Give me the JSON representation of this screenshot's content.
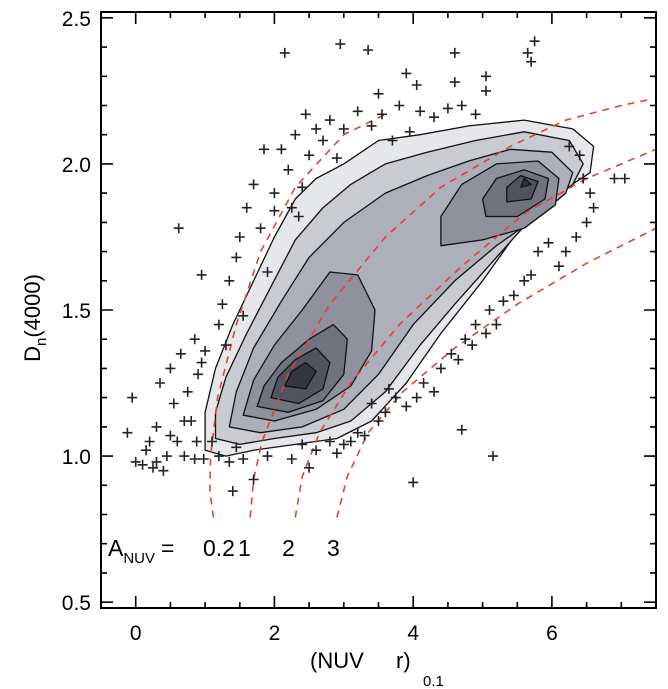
{
  "chart_data": {
    "type": "scatter",
    "xlabel": {
      "main": "(NUV",
      "gap": "r)",
      "sub": "0.1"
    },
    "ylabel": {
      "main": "D",
      "sub": "n",
      "tail": "(4000)"
    },
    "xlim": [
      -0.5,
      7.5
    ],
    "ylim": [
      0.48,
      2.52
    ],
    "x_ticks": [
      0,
      2,
      4,
      6
    ],
    "x_tick_labels": [
      "0",
      "2",
      "4",
      "6"
    ],
    "y_ticks": [
      0.5,
      1.0,
      1.5,
      2.0,
      2.5
    ],
    "y_tick_labels": [
      "0.5",
      "1.0",
      "1.5",
      "2.0",
      "2.5"
    ],
    "grid": false,
    "legend": "none",
    "contours": [
      {
        "level": 1,
        "fill": "#e6e7ea",
        "points": [
          [
            1.0,
            1.02
          ],
          [
            1.3,
            1.0
          ],
          [
            1.7,
            1.02
          ],
          [
            2.3,
            1.04
          ],
          [
            2.9,
            1.06
          ],
          [
            3.4,
            1.12
          ],
          [
            3.9,
            1.25
          ],
          [
            4.4,
            1.42
          ],
          [
            5.0,
            1.6
          ],
          [
            5.6,
            1.8
          ],
          [
            6.1,
            1.9
          ],
          [
            6.55,
            1.97
          ],
          [
            6.6,
            2.06
          ],
          [
            6.3,
            2.12
          ],
          [
            5.6,
            2.15
          ],
          [
            4.8,
            2.13
          ],
          [
            4.1,
            2.1
          ],
          [
            3.5,
            2.08
          ],
          [
            3.0,
            2.0
          ],
          [
            2.6,
            1.95
          ],
          [
            2.3,
            1.88
          ],
          [
            2.0,
            1.75
          ],
          [
            1.7,
            1.6
          ],
          [
            1.4,
            1.45
          ],
          [
            1.15,
            1.3
          ],
          [
            1.0,
            1.15
          ]
        ]
      },
      {
        "level": 2,
        "fill": "#c9cbd1",
        "points": [
          [
            1.15,
            1.06
          ],
          [
            1.5,
            1.04
          ],
          [
            2.0,
            1.06
          ],
          [
            2.6,
            1.08
          ],
          [
            3.1,
            1.12
          ],
          [
            3.6,
            1.22
          ],
          [
            4.1,
            1.38
          ],
          [
            4.6,
            1.52
          ],
          [
            5.2,
            1.68
          ],
          [
            5.8,
            1.84
          ],
          [
            6.3,
            1.93
          ],
          [
            6.45,
            2.0
          ],
          [
            6.25,
            2.08
          ],
          [
            5.6,
            2.11
          ],
          [
            4.9,
            2.08
          ],
          [
            4.2,
            2.04
          ],
          [
            3.6,
            2.0
          ],
          [
            3.1,
            1.93
          ],
          [
            2.7,
            1.85
          ],
          [
            2.3,
            1.74
          ],
          [
            1.95,
            1.58
          ],
          [
            1.6,
            1.42
          ],
          [
            1.3,
            1.27
          ],
          [
            1.15,
            1.15
          ]
        ]
      },
      {
        "level": 3,
        "fill": "#adb0b9",
        "points": [
          [
            1.35,
            1.1
          ],
          [
            1.8,
            1.08
          ],
          [
            2.4,
            1.1
          ],
          [
            3.0,
            1.16
          ],
          [
            3.5,
            1.28
          ],
          [
            4.0,
            1.45
          ],
          [
            4.6,
            1.6
          ],
          [
            5.2,
            1.72
          ],
          [
            5.8,
            1.82
          ],
          [
            6.2,
            1.9
          ],
          [
            6.3,
            1.97
          ],
          [
            6.0,
            2.04
          ],
          [
            5.4,
            2.05
          ],
          [
            4.8,
            2.01
          ],
          [
            4.2,
            1.96
          ],
          [
            3.6,
            1.9
          ],
          [
            3.0,
            1.8
          ],
          [
            2.5,
            1.68
          ],
          [
            2.1,
            1.53
          ],
          [
            1.7,
            1.37
          ],
          [
            1.45,
            1.22
          ]
        ]
      },
      {
        "level": 4,
        "fill": "#8f929d",
        "points": [
          [
            1.55,
            1.14
          ],
          [
            2.0,
            1.12
          ],
          [
            2.6,
            1.16
          ],
          [
            3.1,
            1.24
          ],
          [
            3.4,
            1.36
          ],
          [
            3.45,
            1.5
          ],
          [
            3.2,
            1.62
          ],
          [
            2.8,
            1.63
          ],
          [
            2.4,
            1.5
          ],
          [
            2.0,
            1.38
          ],
          [
            1.7,
            1.26
          ]
        ]
      },
      {
        "level": 4,
        "fill": "#8f929d",
        "points": [
          [
            4.4,
            1.72
          ],
          [
            5.0,
            1.74
          ],
          [
            5.6,
            1.78
          ],
          [
            6.05,
            1.86
          ],
          [
            6.1,
            1.95
          ],
          [
            5.8,
            2.01
          ],
          [
            5.2,
            2.0
          ],
          [
            4.7,
            1.93
          ],
          [
            4.4,
            1.82
          ]
        ]
      },
      {
        "level": 5,
        "fill": "#6f737e",
        "points": [
          [
            1.75,
            1.17
          ],
          [
            2.2,
            1.15
          ],
          [
            2.7,
            1.19
          ],
          [
            3.0,
            1.28
          ],
          [
            3.05,
            1.4
          ],
          [
            2.85,
            1.45
          ],
          [
            2.5,
            1.4
          ],
          [
            2.1,
            1.32
          ],
          [
            1.85,
            1.24
          ]
        ]
      },
      {
        "level": 5,
        "fill": "#6f737e",
        "points": [
          [
            5.05,
            1.82
          ],
          [
            5.5,
            1.82
          ],
          [
            5.9,
            1.88
          ],
          [
            5.95,
            1.95
          ],
          [
            5.6,
            1.98
          ],
          [
            5.2,
            1.95
          ],
          [
            5.0,
            1.88
          ]
        ]
      },
      {
        "level": 6,
        "fill": "#505460",
        "points": [
          [
            1.95,
            1.2
          ],
          [
            2.35,
            1.18
          ],
          [
            2.7,
            1.23
          ],
          [
            2.8,
            1.32
          ],
          [
            2.6,
            1.37
          ],
          [
            2.3,
            1.33
          ],
          [
            2.05,
            1.27
          ]
        ]
      },
      {
        "level": 6,
        "fill": "#505460",
        "points": [
          [
            5.35,
            1.87
          ],
          [
            5.7,
            1.88
          ],
          [
            5.8,
            1.94
          ],
          [
            5.55,
            1.96
          ],
          [
            5.35,
            1.92
          ]
        ]
      },
      {
        "level": 7,
        "fill": "#333741",
        "points": [
          [
            2.15,
            1.24
          ],
          [
            2.45,
            1.23
          ],
          [
            2.6,
            1.29
          ],
          [
            2.45,
            1.32
          ],
          [
            2.25,
            1.29
          ]
        ]
      },
      {
        "level": 7,
        "fill": "#333741",
        "points": [
          [
            5.55,
            1.92
          ],
          [
            5.7,
            1.93
          ],
          [
            5.6,
            1.95
          ]
        ]
      }
    ],
    "attenuation_curves": [
      {
        "label": "0.2",
        "points": [
          [
            1.12,
            0.79
          ],
          [
            1.07,
            0.88
          ],
          [
            1.08,
            1.0
          ],
          [
            1.18,
            1.2
          ],
          [
            1.45,
            1.45
          ],
          [
            1.8,
            1.7
          ],
          [
            2.3,
            1.92
          ],
          [
            3.0,
            2.1
          ],
          [
            3.6,
            2.17
          ]
        ]
      },
      {
        "label": "1",
        "points": [
          [
            1.65,
            0.79
          ],
          [
            1.7,
            0.92
          ],
          [
            1.82,
            1.05
          ],
          [
            2.2,
            1.28
          ],
          [
            2.8,
            1.52
          ],
          [
            3.6,
            1.75
          ],
          [
            4.4,
            1.92
          ],
          [
            5.4,
            2.06
          ],
          [
            6.2,
            2.15
          ],
          [
            7.0,
            2.2
          ],
          [
            7.4,
            2.22
          ]
        ]
      },
      {
        "label": "2",
        "points": [
          [
            2.3,
            0.79
          ],
          [
            2.4,
            0.93
          ],
          [
            2.65,
            1.08
          ],
          [
            3.1,
            1.25
          ],
          [
            3.8,
            1.45
          ],
          [
            4.7,
            1.65
          ],
          [
            5.6,
            1.83
          ],
          [
            6.5,
            1.95
          ],
          [
            7.5,
            2.05
          ]
        ]
      },
      {
        "label": "3",
        "points": [
          [
            2.9,
            0.79
          ],
          [
            3.05,
            0.93
          ],
          [
            3.35,
            1.08
          ],
          [
            3.85,
            1.22
          ],
          [
            4.6,
            1.37
          ],
          [
            5.5,
            1.52
          ],
          [
            6.5,
            1.66
          ],
          [
            7.5,
            1.78
          ]
        ]
      }
    ],
    "outliers": [
      [
        -0.05,
        1.2
      ],
      [
        -0.12,
        1.08
      ],
      [
        0.0,
        0.98
      ],
      [
        0.1,
        0.97
      ],
      [
        0.2,
        1.05
      ],
      [
        0.3,
        1.1
      ],
      [
        0.4,
        0.95
      ],
      [
        0.35,
        1.25
      ],
      [
        0.5,
        1.3
      ],
      [
        0.55,
        1.18
      ],
      [
        0.6,
        1.05
      ],
      [
        0.7,
        1.0
      ],
      [
        0.45,
        1.0
      ],
      [
        0.25,
        0.96
      ],
      [
        0.65,
        1.35
      ],
      [
        0.75,
        1.22
      ],
      [
        0.8,
        1.12
      ],
      [
        0.85,
        0.99
      ],
      [
        0.9,
        1.28
      ],
      [
        0.95,
        1.32
      ],
      [
        0.85,
        1.4
      ],
      [
        1.0,
        1.36
      ],
      [
        0.62,
        1.78
      ],
      [
        0.95,
        1.62
      ],
      [
        0.15,
        1.02
      ],
      [
        0.3,
        0.98
      ],
      [
        0.5,
        1.07
      ],
      [
        0.7,
        1.12
      ],
      [
        1.1,
        1.05
      ],
      [
        1.2,
        1.0
      ],
      [
        1.35,
        0.98
      ],
      [
        1.45,
        1.03
      ],
      [
        1.55,
        0.99
      ],
      [
        1.4,
        0.88
      ],
      [
        1.7,
        0.92
      ],
      [
        1.9,
        1.0
      ],
      [
        0.98,
        0.99
      ],
      [
        0.88,
        1.05
      ],
      [
        1.25,
        1.52
      ],
      [
        1.35,
        1.6
      ],
      [
        1.45,
        1.68
      ],
      [
        1.2,
        1.45
      ],
      [
        1.5,
        1.75
      ],
      [
        1.6,
        1.85
      ],
      [
        1.7,
        1.93
      ],
      [
        1.8,
        1.78
      ],
      [
        2.0,
        1.9
      ],
      [
        1.85,
        2.05
      ],
      [
        2.1,
        2.05
      ],
      [
        2.2,
        1.98
      ],
      [
        1.9,
        1.63
      ],
      [
        1.55,
        1.48
      ],
      [
        1.3,
        1.38
      ],
      [
        2.3,
        2.1
      ],
      [
        2.5,
        2.03
      ],
      [
        2.6,
        2.12
      ],
      [
        2.7,
        2.08
      ],
      [
        2.45,
        2.17
      ],
      [
        2.8,
        2.15
      ],
      [
        2.9,
        2.02
      ],
      [
        3.0,
        2.12
      ],
      [
        3.2,
        2.18
      ],
      [
        3.4,
        2.13
      ],
      [
        3.55,
        2.17
      ],
      [
        3.7,
        2.08
      ],
      [
        3.8,
        2.2
      ],
      [
        3.95,
        2.11
      ],
      [
        4.1,
        2.18
      ],
      [
        4.3,
        2.16
      ],
      [
        4.5,
        2.19
      ],
      [
        4.7,
        2.2
      ],
      [
        4.9,
        2.17
      ],
      [
        5.05,
        2.25
      ],
      [
        4.6,
        2.28
      ],
      [
        3.5,
        2.24
      ],
      [
        2.15,
        2.38
      ],
      [
        2.95,
        2.41
      ],
      [
        3.35,
        2.39
      ],
      [
        3.9,
        2.31
      ],
      [
        4.05,
        2.27
      ],
      [
        4.6,
        2.38
      ],
      [
        5.05,
        2.3
      ],
      [
        5.65,
        2.38
      ],
      [
        5.75,
        2.42
      ],
      [
        5.7,
        2.35
      ],
      [
        2.25,
        1.85
      ],
      [
        2.35,
        1.82
      ],
      [
        2.4,
        1.92
      ],
      [
        2.0,
        1.84
      ],
      [
        6.25,
        2.06
      ],
      [
        6.4,
        2.03
      ],
      [
        6.45,
        1.95
      ],
      [
        6.55,
        1.9
      ],
      [
        6.6,
        1.85
      ],
      [
        6.5,
        1.8
      ],
      [
        6.35,
        1.75
      ],
      [
        6.9,
        1.95
      ],
      [
        7.05,
        1.95
      ],
      [
        6.2,
        1.7
      ],
      [
        6.1,
        1.65
      ],
      [
        5.95,
        1.73
      ],
      [
        5.8,
        1.7
      ],
      [
        5.7,
        1.62
      ],
      [
        5.6,
        1.6
      ],
      [
        5.45,
        1.55
      ],
      [
        5.3,
        1.53
      ],
      [
        5.1,
        1.5
      ],
      [
        5.2,
        1.45
      ],
      [
        5.05,
        1.42
      ],
      [
        4.9,
        1.45
      ],
      [
        4.85,
        1.38
      ],
      [
        4.75,
        1.4
      ],
      [
        4.65,
        1.33
      ],
      [
        4.55,
        1.35
      ],
      [
        4.4,
        1.3
      ],
      [
        4.3,
        1.22
      ],
      [
        4.15,
        1.25
      ],
      [
        4.05,
        1.2
      ],
      [
        3.9,
        1.17
      ],
      [
        3.75,
        1.2
      ],
      [
        3.6,
        1.15
      ],
      [
        3.5,
        1.12
      ],
      [
        3.4,
        1.18
      ],
      [
        3.3,
        1.07
      ],
      [
        3.2,
        1.08
      ],
      [
        3.1,
        1.05
      ],
      [
        3.0,
        1.04
      ],
      [
        2.9,
        1.01
      ],
      [
        2.8,
        1.05
      ],
      [
        2.6,
        1.02
      ],
      [
        2.5,
        0.96
      ],
      [
        2.4,
        1.04
      ],
      [
        2.25,
        0.99
      ],
      [
        5.15,
        1.0
      ],
      [
        4.7,
        1.09
      ],
      [
        4.0,
        0.91
      ],
      [
        3.65,
        1.23
      ]
    ],
    "annotation": {
      "label_main": "A",
      "label_sub": "NUV",
      "equals": "=",
      "values": [
        "0.2",
        "1",
        "2",
        "3"
      ]
    }
  }
}
